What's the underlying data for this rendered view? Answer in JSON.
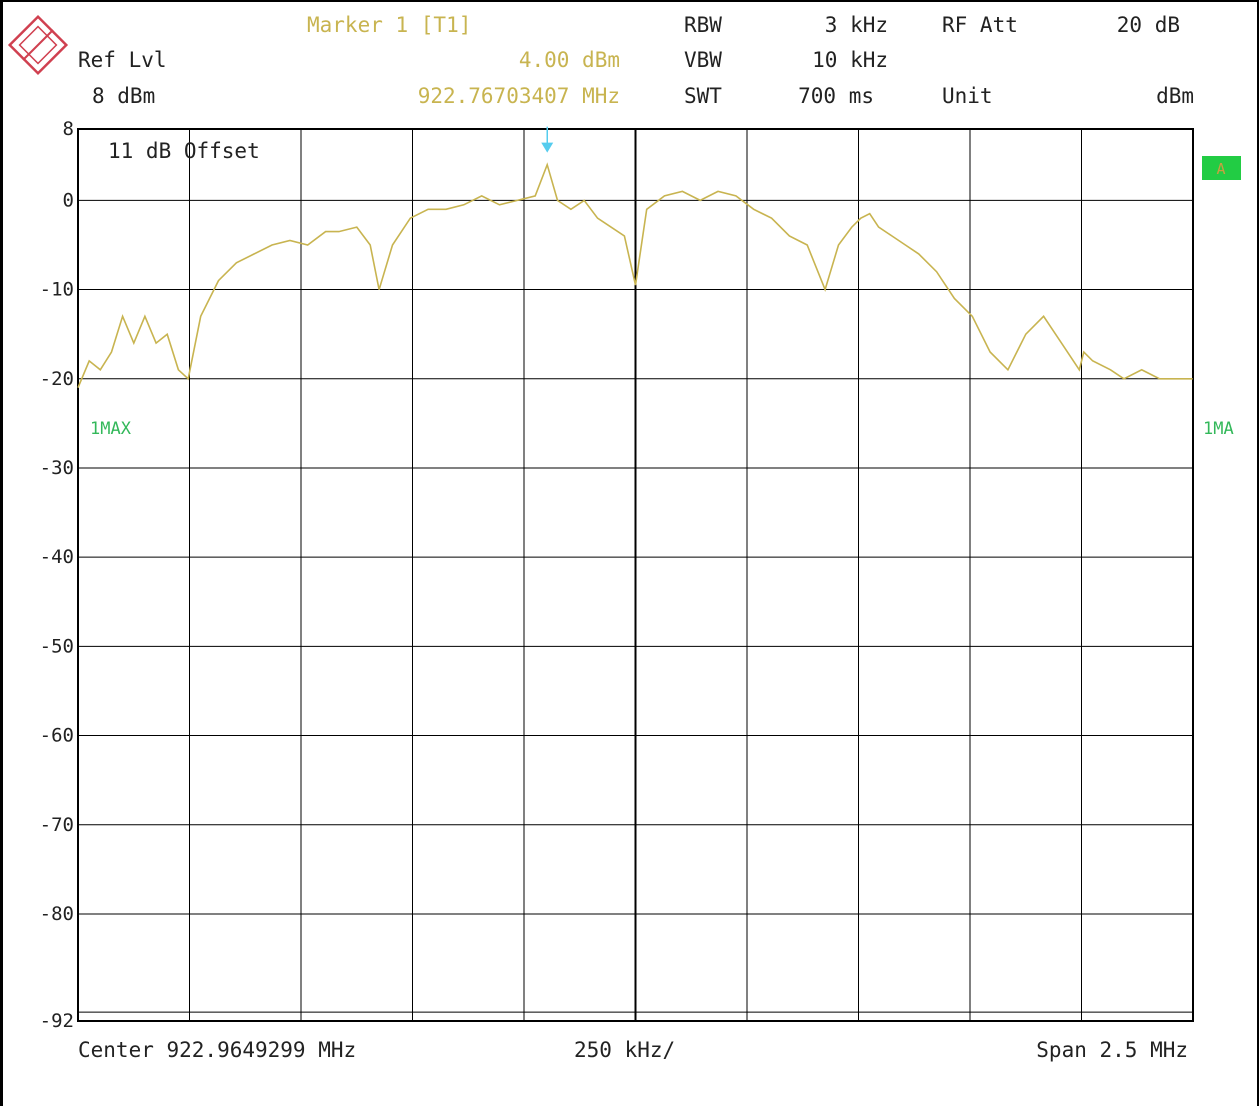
{
  "header": {
    "ref_lvl_label": "Ref Lvl",
    "ref_lvl_value": "8 dBm",
    "marker_title": "Marker 1 [T1]",
    "marker_level": "4.00 dBm",
    "marker_freq": "922.76703407 MHz",
    "rbw_label": "RBW",
    "rbw_value": "3 kHz",
    "vbw_label": "VBW",
    "vbw_value": "10 kHz",
    "swt_label": "SWT",
    "swt_value": "700 ms",
    "rf_att_label": "RF Att",
    "rf_att_value": "20 dB",
    "unit_label": "Unit",
    "unit_value": "dBm"
  },
  "footer": {
    "center": "Center 922.9649299 MHz",
    "per_div": "250 kHz/",
    "span": "Span 2.5 MHz"
  },
  "chart_data": {
    "type": "line",
    "offset_note": "11 dB Offset",
    "trace_label_left": "1MAX",
    "trace_label_right": "1MA",
    "trace_badge": "A",
    "center_mhz": 922.9649299,
    "span_mhz": 2.5,
    "xlim": [
      921.7149299,
      924.2149299
    ],
    "ylim": [
      -92,
      8
    ],
    "yticks": [
      8,
      0,
      -10,
      -20,
      -30,
      -40,
      -50,
      -60,
      -70,
      -80,
      -92
    ],
    "ytick_labels": [
      "8",
      "0",
      "-10",
      "-20",
      "-30",
      "-40",
      "-50",
      "-60",
      "-70",
      "-80",
      "-92"
    ],
    "marker": {
      "x": 922.76703407,
      "y": 4.0
    },
    "series": [
      {
        "color": "#c8b450",
        "x": [
          921.715,
          921.74,
          921.765,
          921.79,
          921.815,
          921.84,
          921.865,
          921.89,
          921.915,
          921.94,
          921.962,
          921.99,
          922.03,
          922.07,
          922.11,
          922.15,
          922.19,
          922.23,
          922.27,
          922.3,
          922.34,
          922.37,
          922.39,
          922.42,
          922.46,
          922.5,
          922.54,
          922.58,
          922.62,
          922.66,
          922.7,
          922.74,
          922.767,
          922.79,
          922.82,
          922.85,
          922.88,
          922.91,
          922.94,
          922.965,
          922.99,
          923.03,
          923.07,
          923.11,
          923.15,
          923.19,
          923.23,
          923.27,
          923.31,
          923.35,
          923.39,
          923.42,
          923.45,
          923.47,
          923.49,
          923.51,
          923.54,
          923.57,
          923.6,
          923.64,
          923.68,
          923.72,
          923.76,
          923.8,
          923.84,
          923.88,
          923.92,
          923.96,
          923.97,
          923.99,
          924.03,
          924.06,
          924.1,
          924.14,
          924.18,
          924.214
        ],
        "values": [
          -21,
          -18,
          -19,
          -17,
          -13,
          -16,
          -13,
          -16,
          -15,
          -19,
          -20,
          -13,
          -9,
          -7,
          -6,
          -5,
          -4.5,
          -5,
          -3.5,
          -3.5,
          -3,
          -5,
          -10,
          -5,
          -2,
          -1,
          -1,
          -0.5,
          0.5,
          -0.5,
          0,
          0.5,
          4,
          0,
          -1,
          0,
          -2,
          -3,
          -4,
          -9.5,
          -1,
          0.5,
          1,
          0,
          1,
          0.5,
          -1,
          -2,
          -4,
          -5,
          -10,
          -5,
          -3,
          -2,
          -1.5,
          -3,
          -4,
          -5,
          -6,
          -8,
          -11,
          -13,
          -17,
          -19,
          -15,
          -13,
          -16,
          -19,
          -17,
          -18,
          -19,
          -20,
          -19,
          -20,
          -20,
          -20
        ]
      }
    ]
  }
}
